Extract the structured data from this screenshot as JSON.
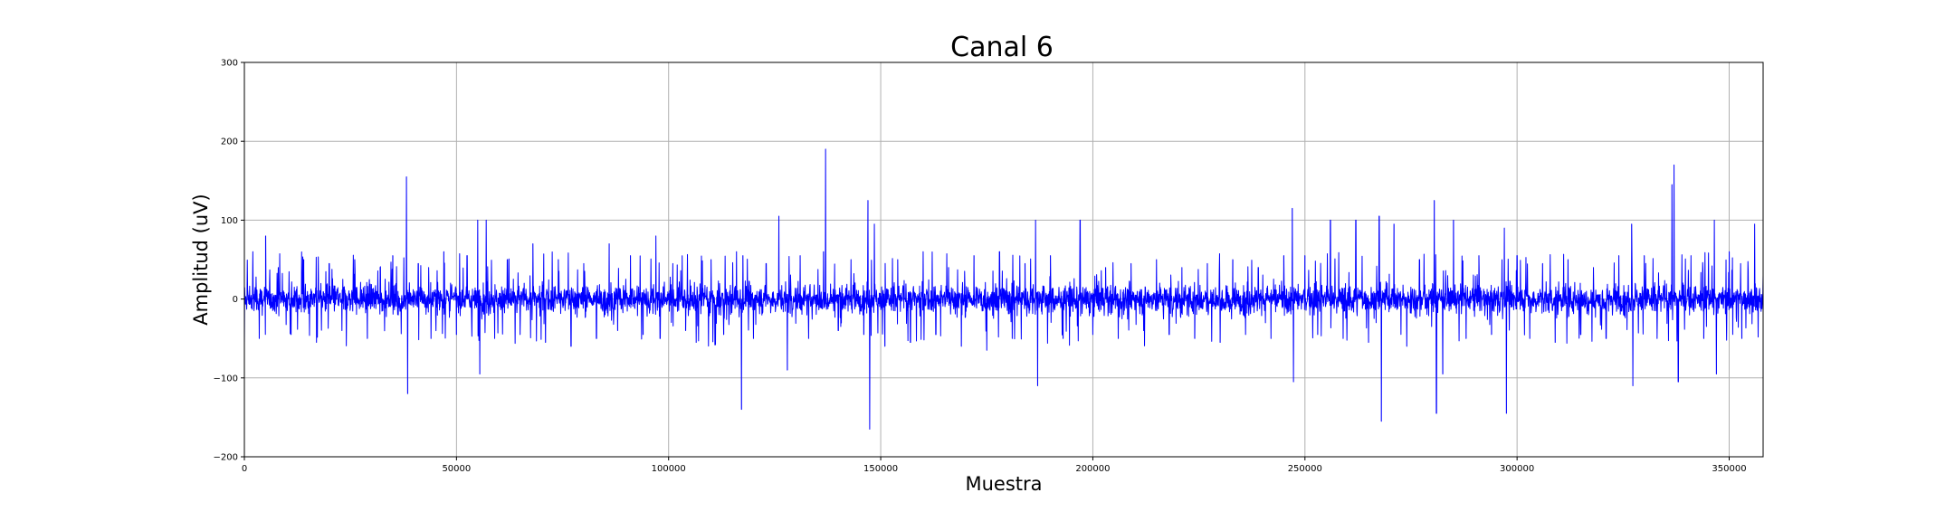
{
  "chart_data": {
    "type": "line",
    "title": "Canal 6",
    "xlabel": "Muestra",
    "ylabel": "Amplitud (uV)",
    "xlim": [
      0,
      358000
    ],
    "ylim": [
      -200,
      300
    ],
    "xticks": [
      0,
      50000,
      100000,
      150000,
      200000,
      250000,
      300000,
      350000
    ],
    "xtick_labels": [
      "0",
      "50000",
      "100000",
      "150000",
      "200000",
      "250000",
      "300000",
      "350000"
    ],
    "yticks": [
      -200,
      -100,
      0,
      100,
      200,
      300
    ],
    "ytick_labels": [
      "−200",
      "−100",
      "0",
      "100",
      "200",
      "300"
    ],
    "grid": true,
    "series": [
      {
        "color": "#0000ff",
        "noise_sd": 11,
        "x": [
          0,
          2000,
          3500,
          5000,
          8000,
          11000,
          14000,
          17000,
          20000,
          23000,
          26000,
          29000,
          32000,
          35000,
          38200,
          38500,
          41000,
          44000,
          47000,
          50000,
          52500,
          55000,
          55500,
          57000,
          59000,
          62000,
          65000,
          68000,
          71000,
          74000,
          77000,
          80000,
          83000,
          86000,
          88000,
          91000,
          94000,
          97000,
          98000,
          101000,
          104000,
          106500,
          110000,
          113000,
          116000,
          117200,
          117500,
          120000,
          123000,
          126000,
          128000,
          131000,
          133000,
          136500,
          137000,
          140000,
          143000,
          146000,
          147000,
          147400,
          148500,
          151000,
          154000,
          157000,
          160000,
          163000,
          166000,
          169000,
          172000,
          175000,
          178000,
          181000,
          184000,
          186500,
          187000,
          190000,
          193000,
          197000,
          200000,
          203000,
          206000,
          209000,
          212000,
          215000,
          218000,
          221000,
          224000,
          227000,
          230000,
          233000,
          236000,
          239000,
          242000,
          245000,
          247000,
          247300,
          250000,
          253000,
          256000,
          259000,
          262000,
          265000,
          267500,
          268000,
          271000,
          274000,
          277000,
          280500,
          281000,
          282500,
          285000,
          288000,
          291000,
          294000,
          297000,
          297500,
          300000,
          303000,
          306000,
          309000,
          312000,
          315000,
          318000,
          321000,
          324000,
          327000,
          327300,
          330000,
          333000,
          336500,
          337000,
          338000,
          341000,
          344000,
          346500,
          347000,
          350000,
          353000,
          356000,
          358000
        ],
        "y": [
          -60,
          60,
          -50,
          80,
          40,
          -45,
          50,
          -55,
          45,
          -40,
          50,
          -50,
          40,
          55,
          155,
          -120,
          45,
          -50,
          60,
          -45,
          55,
          100,
          -95,
          100,
          -50,
          50,
          -45,
          70,
          -55,
          50,
          -60,
          45,
          -50,
          70,
          -40,
          55,
          -45,
          80,
          -50,
          45,
          -40,
          -55,
          50,
          -45,
          60,
          -140,
          55,
          -50,
          45,
          105,
          -90,
          55,
          -50,
          60,
          190,
          -40,
          50,
          -45,
          125,
          -165,
          95,
          -60,
          50,
          -55,
          60,
          -45,
          40,
          -60,
          55,
          -65,
          60,
          -50,
          45,
          100,
          -110,
          55,
          -50,
          100,
          -45,
          40,
          -50,
          45,
          -40,
          50,
          -45,
          40,
          -50,
          45,
          -55,
          50,
          -45,
          40,
          -50,
          55,
          115,
          -105,
          55,
          -45,
          100,
          -50,
          100,
          -55,
          105,
          -155,
          95,
          -60,
          50,
          125,
          -145,
          -95,
          100,
          -50,
          55,
          -45,
          90,
          -145,
          55,
          -50,
          45,
          -55,
          50,
          -45,
          40,
          -50,
          55,
          95,
          -110,
          55,
          -50,
          145,
          170,
          -105,
          55,
          -50,
          100,
          -95,
          60,
          -50,
          95,
          30
        ]
      }
    ]
  }
}
